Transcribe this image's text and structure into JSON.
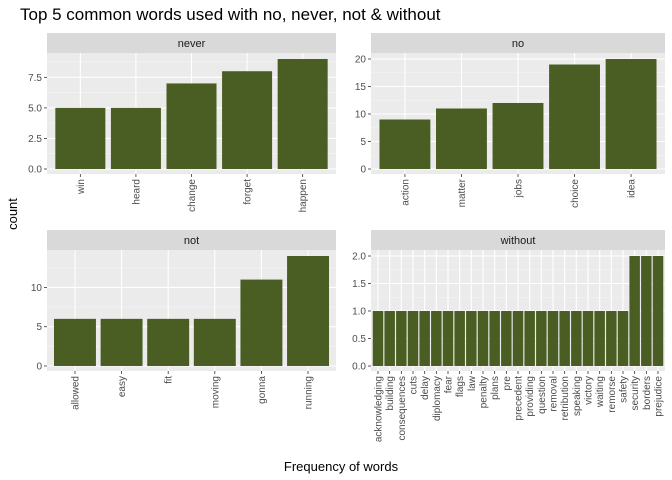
{
  "chart_data": {
    "type": "bar",
    "title": "Top 5 common words used with no, never, not & without",
    "xlabel": "Frequency of words",
    "ylabel": "count",
    "bar_color": "#4a5e23",
    "panel_color": "#ebebeb",
    "strip_color": "#d9d9d9",
    "panels": [
      {
        "facet": "never",
        "categories": [
          "win",
          "heard",
          "change",
          "forget",
          "happen"
        ],
        "values": [
          5,
          5,
          7,
          8,
          9
        ],
        "ylim": [
          0,
          9
        ],
        "yticks": [
          "0.0",
          "2.5",
          "5.0",
          "7.5"
        ]
      },
      {
        "facet": "no",
        "categories": [
          "action",
          "matter",
          "jobs",
          "choice",
          "idea"
        ],
        "values": [
          9,
          11,
          12,
          19,
          20
        ],
        "ylim": [
          0,
          20
        ],
        "yticks": [
          "0",
          "5",
          "10",
          "15",
          "20"
        ]
      },
      {
        "facet": "not",
        "categories": [
          "allowed",
          "easy",
          "fit",
          "moving",
          "gonna",
          "running"
        ],
        "values": [
          6,
          6,
          6,
          6,
          11,
          14
        ],
        "ylim": [
          0,
          14
        ],
        "yticks": [
          "0",
          "5",
          "10"
        ]
      },
      {
        "facet": "without",
        "categories": [
          "acknowledging",
          "building",
          "consequences",
          "cuts",
          "delay",
          "diplomacy",
          "fear",
          "flags",
          "law",
          "penalty",
          "plans",
          "pre",
          "precedent",
          "providing",
          "question",
          "removal",
          "retribution",
          "speaking",
          "victory",
          "waiting",
          "remorse",
          "safety",
          "security",
          "borders",
          "prejudice"
        ],
        "values": [
          1,
          1,
          1,
          1,
          1,
          1,
          1,
          1,
          1,
          1,
          1,
          1,
          1,
          1,
          1,
          1,
          1,
          1,
          1,
          1,
          1,
          1,
          2,
          2,
          2
        ],
        "ylim": [
          0,
          2
        ],
        "yticks": [
          "0.0",
          "0.5",
          "1.0",
          "1.5",
          "2.0"
        ]
      }
    ]
  }
}
